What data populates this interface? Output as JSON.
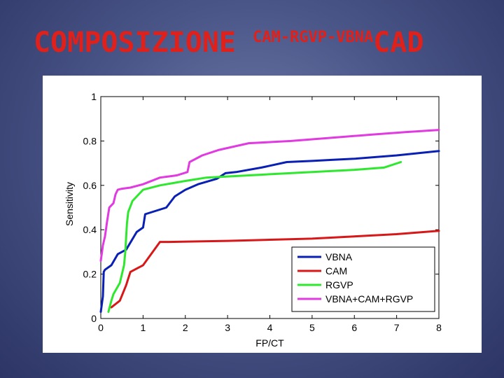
{
  "slide": {
    "title_main": "COMPOSIZIONE",
    "title_sup": "CAM-RGVP-VBNA",
    "title_end": "CAD"
  },
  "chart_data": {
    "type": "line",
    "xlabel": "FP/CT",
    "ylabel": "Sensitivity",
    "xlim": [
      0,
      8
    ],
    "ylim": [
      0,
      1
    ],
    "xticks": [
      "0",
      "1",
      "2",
      "3",
      "4",
      "5",
      "6",
      "7",
      "8"
    ],
    "yticks": [
      "0",
      "0.2",
      "0.4",
      "0.6",
      "0.8",
      "1"
    ],
    "grid": false,
    "legend_position": "bottom-right",
    "series": [
      {
        "name": "VBNA",
        "color": "#0a1fb4",
        "x": [
          0.0,
          0.05,
          0.07,
          0.1,
          0.25,
          0.4,
          0.6,
          0.85,
          1.0,
          1.05,
          1.55,
          1.75,
          2.0,
          2.3,
          2.75,
          2.95,
          3.2,
          3.8,
          4.4,
          5.0,
          5.5,
          6.0,
          7.0,
          8.0
        ],
        "y": [
          0.03,
          0.1,
          0.21,
          0.22,
          0.24,
          0.29,
          0.31,
          0.39,
          0.41,
          0.47,
          0.5,
          0.55,
          0.58,
          0.605,
          0.63,
          0.655,
          0.66,
          0.68,
          0.705,
          0.71,
          0.715,
          0.72,
          0.735,
          0.755
        ]
      },
      {
        "name": "CAM",
        "color": "#d81818",
        "x": [
          0.25,
          0.45,
          0.6,
          0.65,
          0.7,
          1.0,
          1.4,
          1.6,
          3.0,
          4.0,
          5.0,
          6.0,
          7.0,
          8.0
        ],
        "y": [
          0.05,
          0.08,
          0.15,
          0.18,
          0.21,
          0.24,
          0.345,
          0.345,
          0.35,
          0.355,
          0.36,
          0.37,
          0.38,
          0.395
        ]
      },
      {
        "name": "RGVP",
        "color": "#2ee82e",
        "x": [
          0.18,
          0.25,
          0.3,
          0.45,
          0.5,
          0.55,
          0.58,
          0.62,
          0.65,
          0.75,
          1.0,
          1.4,
          2.0,
          2.5,
          3.0,
          4.0,
          5.0,
          6.0,
          6.7,
          7.1
        ],
        "y": [
          0.03,
          0.08,
          0.11,
          0.16,
          0.2,
          0.24,
          0.3,
          0.43,
          0.48,
          0.53,
          0.58,
          0.6,
          0.62,
          0.635,
          0.64,
          0.65,
          0.66,
          0.67,
          0.68,
          0.705
        ]
      },
      {
        "name": "VBNA+CAM+RGVP",
        "color": "#e03ae0",
        "x": [
          0.0,
          0.05,
          0.1,
          0.15,
          0.2,
          0.3,
          0.35,
          0.4,
          0.5,
          0.7,
          1.0,
          1.4,
          1.6,
          1.8,
          2.05,
          2.1,
          2.4,
          2.8,
          3.5,
          4.5,
          5.5,
          6.5,
          7.2,
          8.0
        ],
        "y": [
          0.26,
          0.33,
          0.37,
          0.44,
          0.5,
          0.52,
          0.56,
          0.58,
          0.585,
          0.59,
          0.605,
          0.635,
          0.64,
          0.645,
          0.66,
          0.705,
          0.735,
          0.76,
          0.79,
          0.8,
          0.815,
          0.83,
          0.84,
          0.85
        ]
      }
    ]
  }
}
